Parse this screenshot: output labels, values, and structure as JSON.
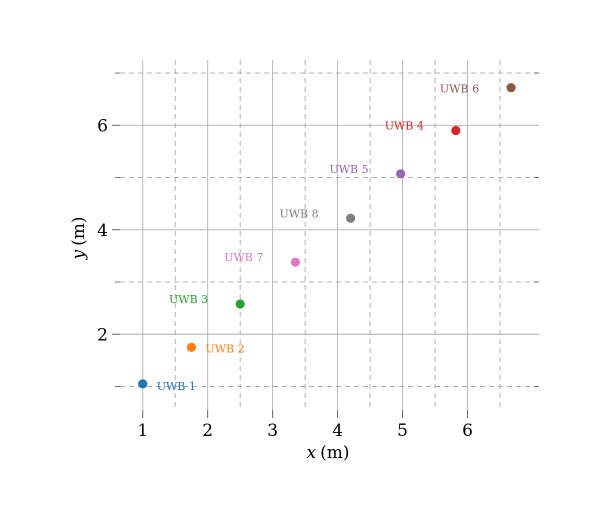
{
  "chart_data": {
    "type": "scatter",
    "xlabel_var": "x",
    "xlabel_unit": "(m)",
    "ylabel_var": "y",
    "ylabel_unit": "(m)",
    "xlim": [
      0.65,
      7.1
    ],
    "ylim": [
      0.55,
      7.25
    ],
    "x_ticks": [
      1,
      2,
      3,
      4,
      5,
      6
    ],
    "y_ticks": [
      2,
      4,
      6
    ],
    "x_minor_dashed": [
      1.5,
      2.5,
      3.5,
      4.5,
      5.5,
      6.5
    ],
    "y_minor_dashed": [
      1,
      3,
      5,
      7
    ],
    "grid": true,
    "points": [
      {
        "label": "UWB 1",
        "x": 1.0,
        "y": 1.05,
        "color": "#1f77b4"
      },
      {
        "label": "UWB 2",
        "x": 1.75,
        "y": 1.75,
        "color": "#ff7f0e"
      },
      {
        "label": "UWB 3",
        "x": 2.5,
        "y": 2.58,
        "color": "#2ca02c"
      },
      {
        "label": "UWB 4",
        "x": 5.82,
        "y": 5.9,
        "color": "#d62728"
      },
      {
        "label": "UWB 5",
        "x": 4.97,
        "y": 5.07,
        "color": "#9467bd"
      },
      {
        "label": "UWB 6",
        "x": 6.67,
        "y": 6.72,
        "color": "#8c564b"
      },
      {
        "label": "UWB 7",
        "x": 3.35,
        "y": 3.38,
        "color": "#e377c2"
      },
      {
        "label": "UWB 8",
        "x": 4.2,
        "y": 4.22,
        "color": "#7f7f7f"
      }
    ]
  }
}
